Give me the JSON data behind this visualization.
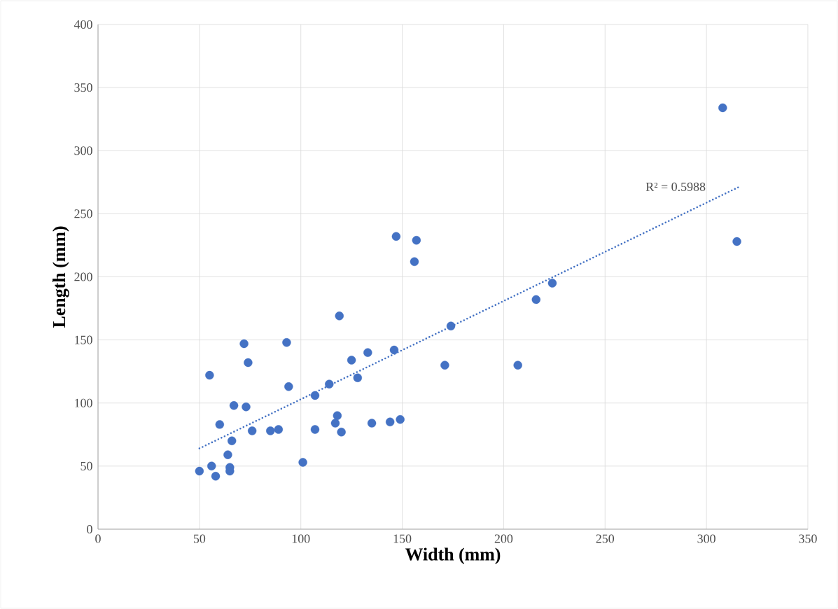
{
  "chart_data": {
    "type": "scatter",
    "xlabel": "Width (mm)",
    "ylabel": "Length (mm)",
    "xlim": [
      0,
      350
    ],
    "ylim": [
      0,
      400
    ],
    "xticks": [
      0,
      50,
      100,
      150,
      200,
      250,
      300,
      350
    ],
    "yticks": [
      0,
      50,
      100,
      150,
      200,
      250,
      300,
      350,
      400
    ],
    "grid": true,
    "marker": "circle",
    "annotations": [
      "R² = 0.5988"
    ],
    "series": [
      {
        "color": "#4472c4",
        "x": [
          50,
          55,
          56,
          58,
          60,
          64,
          65,
          65,
          66,
          67,
          72,
          73,
          74,
          76,
          85,
          89,
          93,
          94,
          101,
          107,
          107,
          114,
          117,
          118,
          119,
          120,
          125,
          128,
          133,
          135,
          144,
          146,
          147,
          149,
          156,
          157,
          171,
          174,
          207,
          216,
          224,
          308,
          315
        ],
        "values": [
          46,
          122,
          50,
          42,
          83,
          59,
          49,
          46,
          70,
          98,
          147,
          97,
          132,
          78,
          78,
          79,
          148,
          113,
          53,
          106,
          79,
          115,
          84,
          90,
          169,
          77,
          134,
          120,
          140,
          84,
          85,
          142,
          232,
          87,
          212,
          229,
          130,
          161,
          130,
          182,
          195,
          334,
          228
        ]
      },
      {
        "type": "line",
        "line_style": "dotted",
        "marker": "none",
        "color": "#4472c4",
        "x": [
          50,
          317
        ],
        "values": [
          64,
          272
        ]
      }
    ]
  }
}
